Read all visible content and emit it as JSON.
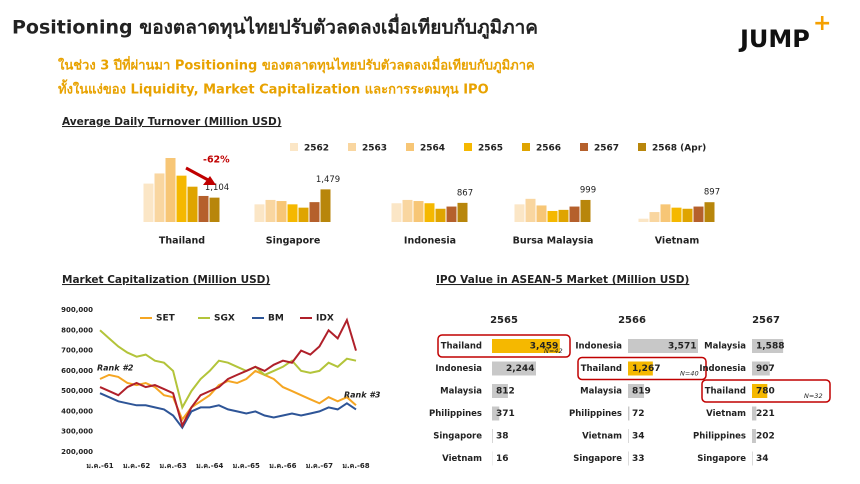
{
  "header": {
    "title": "Positioning ของตลาดทุนไทยปรับตัวลดลงเมื่อเทียบกับภูมิภาค",
    "subtitle": [
      "ในช่วง 3 ปีที่ผ่านมา Positioning ของตลาดทุนไทยปรับตัวลดลงเมื่อเทียบกับภูมิภาค",
      "ทั้งในแง่ของ Liquidity, Market Capitalization และการระดมทุน IPO"
    ],
    "logo": "JUMP",
    "logo_mark": "+"
  },
  "chart_data": [
    {
      "type": "bar",
      "title": "Average Daily Turnover (Million USD)",
      "categories": [
        "Thailand",
        "Singapore",
        "Indonesia",
        "Bursa Malaysia",
        "Vietnam"
      ],
      "annotation": "-62%",
      "series": [
        {
          "name": "2562",
          "color": "#fbe6c6",
          "values": [
            1740,
            800,
            850,
            800,
            150
          ]
        },
        {
          "name": "2563",
          "color": "#f9d6a0",
          "values": [
            2200,
            1000,
            1000,
            1050,
            450
          ]
        },
        {
          "name": "2564",
          "color": "#f7c676",
          "values": [
            2900,
            950,
            950,
            750,
            800
          ]
        },
        {
          "name": "2565",
          "color": "#f5b800",
          "values": [
            2100,
            800,
            850,
            500,
            650
          ]
        },
        {
          "name": "2566",
          "color": "#dfa400",
          "values": [
            1600,
            650,
            600,
            550,
            600
          ]
        },
        {
          "name": "2567",
          "color": "#b5602c",
          "values": [
            1180,
            900,
            700,
            700,
            700
          ]
        },
        {
          "name": "2568 (Apr)",
          "color": "#b8860b",
          "values": [
            1104,
            1479,
            867,
            999,
            897
          ],
          "value_labels": [
            "1,104",
            "1,479",
            "867",
            "999",
            "897"
          ]
        }
      ]
    },
    {
      "type": "line",
      "title": "Market Capitalization (Million USD)",
      "categories": [
        "ม.ค.-61",
        null,
        null,
        null,
        "ม.ค.-62",
        null,
        null,
        null,
        "ม.ค.-63",
        null,
        null,
        null,
        "ม.ค.-64",
        null,
        null,
        null,
        "ม.ค.-65",
        null,
        null,
        null,
        "ม.ค.-66",
        null,
        null,
        null,
        "ม.ค.-67",
        null,
        null,
        null,
        "ม.ค.-68"
      ],
      "ylim": [
        200000,
        900000
      ],
      "yticks": [
        {
          "value": 200000,
          "label": "200,000"
        },
        {
          "value": 300000,
          "label": "300,000"
        },
        {
          "value": 400000,
          "label": "400,000"
        },
        {
          "value": 500000,
          "label": "500,000"
        },
        {
          "value": 600000,
          "label": "600,000"
        },
        {
          "value": 700000,
          "label": "700,000"
        },
        {
          "value": 800000,
          "label": "800,000"
        },
        {
          "value": 900000,
          "label": "900,000"
        }
      ],
      "annotations": [
        "Rank #2",
        "Rank #3"
      ],
      "series": [
        {
          "name": "SET",
          "color": "#f5a623",
          "values": [
            560000,
            580000,
            570000,
            540000,
            530000,
            540000,
            520000,
            480000,
            470000,
            360000,
            420000,
            450000,
            480000,
            530000,
            550000,
            540000,
            560000,
            600000,
            580000,
            560000,
            520000,
            500000,
            480000,
            460000,
            440000,
            470000,
            450000,
            470000,
            430000
          ]
        },
        {
          "name": "SGX",
          "color": "#b3c43a",
          "values": [
            800000,
            760000,
            720000,
            690000,
            670000,
            680000,
            650000,
            640000,
            600000,
            420000,
            500000,
            560000,
            600000,
            650000,
            640000,
            620000,
            600000,
            620000,
            580000,
            600000,
            620000,
            650000,
            600000,
            590000,
            600000,
            640000,
            620000,
            660000,
            650000
          ]
        },
        {
          "name": "BM",
          "color": "#2e5597",
          "values": [
            490000,
            470000,
            450000,
            440000,
            430000,
            430000,
            420000,
            410000,
            380000,
            320000,
            400000,
            420000,
            420000,
            430000,
            410000,
            400000,
            390000,
            400000,
            380000,
            370000,
            380000,
            390000,
            380000,
            390000,
            400000,
            420000,
            410000,
            440000,
            410000
          ]
        },
        {
          "name": "IDX",
          "color": "#b0202a",
          "values": [
            520000,
            500000,
            480000,
            520000,
            540000,
            520000,
            530000,
            510000,
            490000,
            330000,
            420000,
            480000,
            500000,
            520000,
            560000,
            580000,
            600000,
            620000,
            600000,
            630000,
            650000,
            640000,
            700000,
            680000,
            720000,
            800000,
            760000,
            850000,
            700000
          ]
        }
      ]
    },
    {
      "type": "hbar_panels",
      "title": "IPO Value in ASEAN-5 Market (Million USD)",
      "panels": [
        {
          "year": "2565",
          "bars": [
            {
              "name": "Thailand",
              "value": 3459,
              "value_label": "3,459",
              "color": "#f5b800",
              "note": "N=42"
            },
            {
              "name": "Indonesia",
              "value": 2244,
              "value_label": "2,244",
              "color": "#c8c8c8"
            },
            {
              "name": "Malaysia",
              "value": 812,
              "color": "#c8c8c8"
            },
            {
              "name": "Philippines",
              "value": 371,
              "color": "#c8c8c8"
            },
            {
              "name": "Singapore",
              "value": 38,
              "color": "#c8c8c8"
            },
            {
              "name": "Vietnam",
              "value": 16,
              "color": "#c8c8c8"
            }
          ]
        },
        {
          "year": "2566",
          "bars": [
            {
              "name": "Indonesia",
              "value": 3571,
              "value_label": "3,571",
              "color": "#c8c8c8"
            },
            {
              "name": "Thailand",
              "value": 1267,
              "value_label": "1,267",
              "color": "#f5b800",
              "note": "N=40"
            },
            {
              "name": "Malaysia",
              "value": 819,
              "color": "#c8c8c8"
            },
            {
              "name": "Philippines",
              "value": 72,
              "color": "#c8c8c8"
            },
            {
              "name": "Vietnam",
              "value": 34,
              "color": "#c8c8c8"
            },
            {
              "name": "Singapore",
              "value": 33,
              "color": "#c8c8c8"
            }
          ]
        },
        {
          "year": "2567",
          "bars": [
            {
              "name": "Malaysia",
              "value": 1588,
              "value_label": "1,588",
              "color": "#c8c8c8"
            },
            {
              "name": "Indonesia",
              "value": 907,
              "color": "#c8c8c8"
            },
            {
              "name": "Thailand",
              "value": 780,
              "color": "#f5b800",
              "note": "N=32"
            },
            {
              "name": "Vietnam",
              "value": 221,
              "color": "#c8c8c8"
            },
            {
              "name": "Philippines",
              "value": 202,
              "color": "#c8c8c8"
            },
            {
              "name": "Singapore",
              "value": 34,
              "color": "#c8c8c8"
            }
          ]
        }
      ]
    }
  ]
}
